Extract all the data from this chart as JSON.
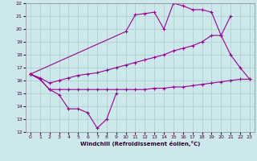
{
  "xlabel": "Windchill (Refroidissement éolien,°C)",
  "xlim": [
    -0.5,
    23.5
  ],
  "ylim": [
    12,
    22
  ],
  "xticks": [
    0,
    1,
    2,
    3,
    4,
    5,
    6,
    7,
    8,
    9,
    10,
    11,
    12,
    13,
    14,
    15,
    16,
    17,
    18,
    19,
    20,
    21,
    22,
    23
  ],
  "yticks": [
    12,
    13,
    14,
    15,
    16,
    17,
    18,
    19,
    20,
    21,
    22
  ],
  "bg_color": "#cce8ea",
  "grid_color": "#aacccc",
  "line_color": "#990099",
  "line1": {
    "x": [
      0,
      1,
      2,
      3,
      4,
      5,
      6,
      7,
      8,
      9
    ],
    "y": [
      16.5,
      16.1,
      15.3,
      14.9,
      13.8,
      13.8,
      13.5,
      12.3,
      13.0,
      15.0
    ]
  },
  "line2": {
    "x": [
      0,
      1,
      2,
      3,
      4,
      5,
      6,
      7,
      8,
      9,
      10,
      11,
      12,
      13,
      14,
      15,
      16,
      17,
      18,
      19,
      20,
      21,
      22,
      23
    ],
    "y": [
      16.5,
      16.1,
      15.3,
      15.3,
      15.3,
      15.3,
      15.3,
      15.3,
      15.3,
      15.3,
      15.3,
      15.3,
      15.3,
      15.4,
      15.4,
      15.5,
      15.5,
      15.6,
      15.7,
      15.8,
      15.9,
      16.0,
      16.1,
      16.1
    ]
  },
  "line3": {
    "x": [
      0,
      1,
      2,
      3,
      4,
      5,
      6,
      7,
      8,
      9,
      10,
      11,
      12,
      13,
      14,
      15,
      16,
      17,
      18,
      19,
      20,
      21
    ],
    "y": [
      16.5,
      16.2,
      15.8,
      16.0,
      16.2,
      16.4,
      16.5,
      16.6,
      16.8,
      17.0,
      17.2,
      17.4,
      17.6,
      17.8,
      18.0,
      18.3,
      18.5,
      18.7,
      19.0,
      19.5,
      19.5,
      21.0
    ]
  },
  "line4": {
    "x": [
      0,
      10,
      11,
      12,
      13,
      14,
      15,
      16,
      17,
      18,
      19,
      20,
      21,
      22,
      23
    ],
    "y": [
      16.5,
      19.8,
      21.1,
      21.2,
      21.3,
      20.0,
      22.0,
      21.8,
      21.5,
      21.5,
      21.3,
      19.5,
      18.0,
      17.0,
      16.1
    ]
  }
}
